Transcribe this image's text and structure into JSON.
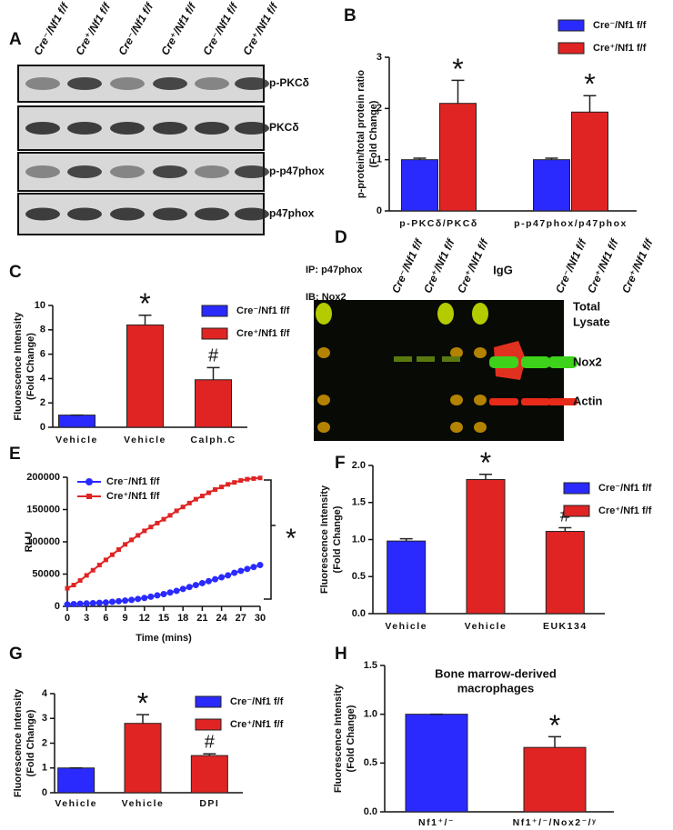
{
  "blot_a": {
    "panel": "A",
    "lanes": [
      "Cre⁻/Nf1 f/f",
      "Cre⁺/Nf1 f/f",
      "Cre⁻/Nf1 f/f",
      "Cre⁺/Nf1 f/f",
      "Cre⁻/Nf1 f/f",
      "Cre⁺/Nf1 f/f"
    ],
    "rows": [
      "p-PKCδ",
      "PKCδ",
      "p-p47phox",
      "p47phox"
    ]
  },
  "blot_d": {
    "panel": "D",
    "ip": "IP: p47phox",
    "ib": "IB: Nox2",
    "lanes_left": [
      "Cre⁻/Nf1 f/f",
      "Cre⁺/Nf1 f/f",
      "Cre⁺/Nf1 f/f"
    ],
    "igg": "IgG",
    "lanes_right": [
      "Cre⁻/Nf1 f/f",
      "Cre⁺/Nf1 f/f",
      "Cre⁺/Nf1 f/f"
    ],
    "band_labels": [
      "Total",
      "Lysate",
      "Nox2",
      "Actin"
    ]
  },
  "chart_data": [
    {
      "type": "bar",
      "panel": "B",
      "ylabel": [
        "p-protein/total protein ratio",
        "(Fold Change)"
      ],
      "categories": [
        "p-PKCδ/PKCδ",
        "p-p47phox/p47phox"
      ],
      "series": [
        {
          "name": "Cre⁻/Nf1 f/f",
          "color": "#2a2aff",
          "values": [
            1.0,
            1.0
          ],
          "errors": [
            0.03,
            0.03
          ]
        },
        {
          "name": "Cre⁺/Nf1 f/f",
          "color": "#e02424",
          "values": [
            2.1,
            1.93
          ],
          "errors": [
            0.45,
            0.32
          ],
          "significance": [
            "*",
            "*"
          ]
        }
      ],
      "ylim": [
        0,
        3
      ],
      "yticks": [
        0,
        1,
        2,
        3
      ],
      "grid": false
    },
    {
      "type": "bar",
      "panel": "C",
      "ylabel": [
        "Fluorescence Intensity",
        "(Fold Change)"
      ],
      "categories": [
        "Vehicle",
        "Vehicle",
        "Calph.C"
      ],
      "series": [
        {
          "name": "Cre⁻/Nf1 f/f",
          "color": "#2a2aff",
          "values": [
            1.0,
            null,
            null
          ],
          "errors": [
            0,
            null,
            null
          ]
        },
        {
          "name": "Cre⁺/Nf1 f/f",
          "color": "#e02424",
          "values": [
            null,
            8.4,
            3.9
          ],
          "errors": [
            null,
            0.8,
            1.0
          ],
          "significance": [
            null,
            "*",
            "#"
          ]
        }
      ],
      "ylim": [
        0,
        10
      ],
      "yticks": [
        0,
        2,
        4,
        6,
        8,
        10
      ],
      "grid": false
    },
    {
      "type": "line",
      "panel": "E",
      "ylabel": [
        "RLU"
      ],
      "xlabel": "Time (mins)",
      "annotation": "*",
      "x": [
        0,
        1,
        2,
        3,
        4,
        5,
        6,
        7,
        8,
        9,
        10,
        11,
        12,
        13,
        14,
        15,
        16,
        17,
        18,
        19,
        20,
        21,
        22,
        23,
        24,
        25,
        26,
        27,
        28,
        29,
        30
      ],
      "series": [
        {
          "name": "Cre⁻/Nf1 f/f",
          "color": "#2a2aff",
          "marker": "circle",
          "values": [
            3000,
            3500,
            4000,
            4500,
            5000,
            5500,
            6000,
            7000,
            8000,
            9000,
            10000,
            11500,
            13000,
            15000,
            17000,
            19000,
            21500,
            24000,
            27000,
            30000,
            33000,
            36000,
            39000,
            42000,
            45000,
            48000,
            52000,
            55000,
            58000,
            61000,
            64000
          ]
        },
        {
          "name": "Cre⁺/Nf1 f/f",
          "color": "#e02424",
          "marker": "square",
          "values": [
            28000,
            33000,
            40000,
            48000,
            56000,
            64000,
            72000,
            80000,
            88000,
            96000,
            103000,
            110000,
            117000,
            123000,
            129000,
            135000,
            141000,
            148000,
            154000,
            160000,
            166000,
            171000,
            176000,
            181000,
            185000,
            189000,
            192000,
            195000,
            197000,
            198000,
            199000
          ]
        }
      ],
      "xlim": [
        0,
        30
      ],
      "xticks": [
        0,
        3,
        6,
        9,
        12,
        15,
        18,
        21,
        24,
        27,
        30
      ],
      "ylim": [
        0,
        200000
      ],
      "yticks": [
        0,
        50000,
        100000,
        150000,
        200000
      ],
      "grid": false
    },
    {
      "type": "bar",
      "panel": "F",
      "ylabel": [
        "Fluorescence Intensity",
        "(Fold Change)"
      ],
      "categories": [
        "Vehicle",
        "Vehicle",
        "EUK134"
      ],
      "series": [
        {
          "name": "Cre⁻/Nf1 f/f",
          "color": "#2a2aff",
          "values": [
            0.98,
            null,
            null
          ],
          "errors": [
            0.03,
            null,
            null
          ]
        },
        {
          "name": "Cre⁺/Nf1 f/f",
          "color": "#e02424",
          "values": [
            null,
            1.81,
            1.11
          ],
          "errors": [
            null,
            0.07,
            0.05
          ],
          "significance": [
            null,
            "*",
            "#"
          ]
        }
      ],
      "ylim": [
        0,
        2
      ],
      "yticks": [
        {
          "value": 0,
          "label": "0.0"
        },
        {
          "value": 0.5,
          "label": "0.5"
        },
        {
          "value": 1,
          "label": "1.0"
        },
        {
          "value": 1.5,
          "label": "1.5"
        },
        {
          "value": 2,
          "label": "2.0"
        }
      ],
      "grid": false
    },
    {
      "type": "bar",
      "panel": "G",
      "ylabel": [
        "Fluorescence Intensity",
        "(Fold Change)"
      ],
      "categories": [
        "Vehicle",
        "Vehicle",
        "DPI"
      ],
      "series": [
        {
          "name": "Cre⁻/Nf1 f/f",
          "color": "#2a2aff",
          "values": [
            1.0,
            null,
            null
          ],
          "errors": [
            0,
            null,
            null
          ]
        },
        {
          "name": "Cre⁺/Nf1 f/f",
          "color": "#e02424",
          "values": [
            null,
            2.8,
            1.5
          ],
          "errors": [
            null,
            0.35,
            0.07
          ],
          "significance": [
            null,
            "*",
            "#"
          ]
        }
      ],
      "ylim": [
        0,
        4
      ],
      "yticks": [
        0,
        1,
        2,
        3,
        4
      ],
      "grid": false
    },
    {
      "type": "bar",
      "panel": "H",
      "title": [
        "Bone marrow-derived",
        "macrophages"
      ],
      "ylabel": [
        "Fluorescence Intensity",
        "(Fold Change)"
      ],
      "categories": [
        "Nf1⁺/⁻",
        "Nf1⁺/⁻/Nox2⁻/ʸ"
      ],
      "values": [
        1.0,
        0.66
      ],
      "errors": [
        0,
        0.11
      ],
      "colors": [
        "#2a2aff",
        "#e02424"
      ],
      "significance": [
        null,
        "*"
      ],
      "ylim": [
        0,
        1.5
      ],
      "yticks": [
        {
          "value": 0,
          "label": "0.0"
        },
        {
          "value": 0.5,
          "label": "0.5"
        },
        {
          "value": 1,
          "label": "1.0"
        },
        {
          "value": 1.5,
          "label": "1.5"
        }
      ],
      "grid": false
    }
  ]
}
